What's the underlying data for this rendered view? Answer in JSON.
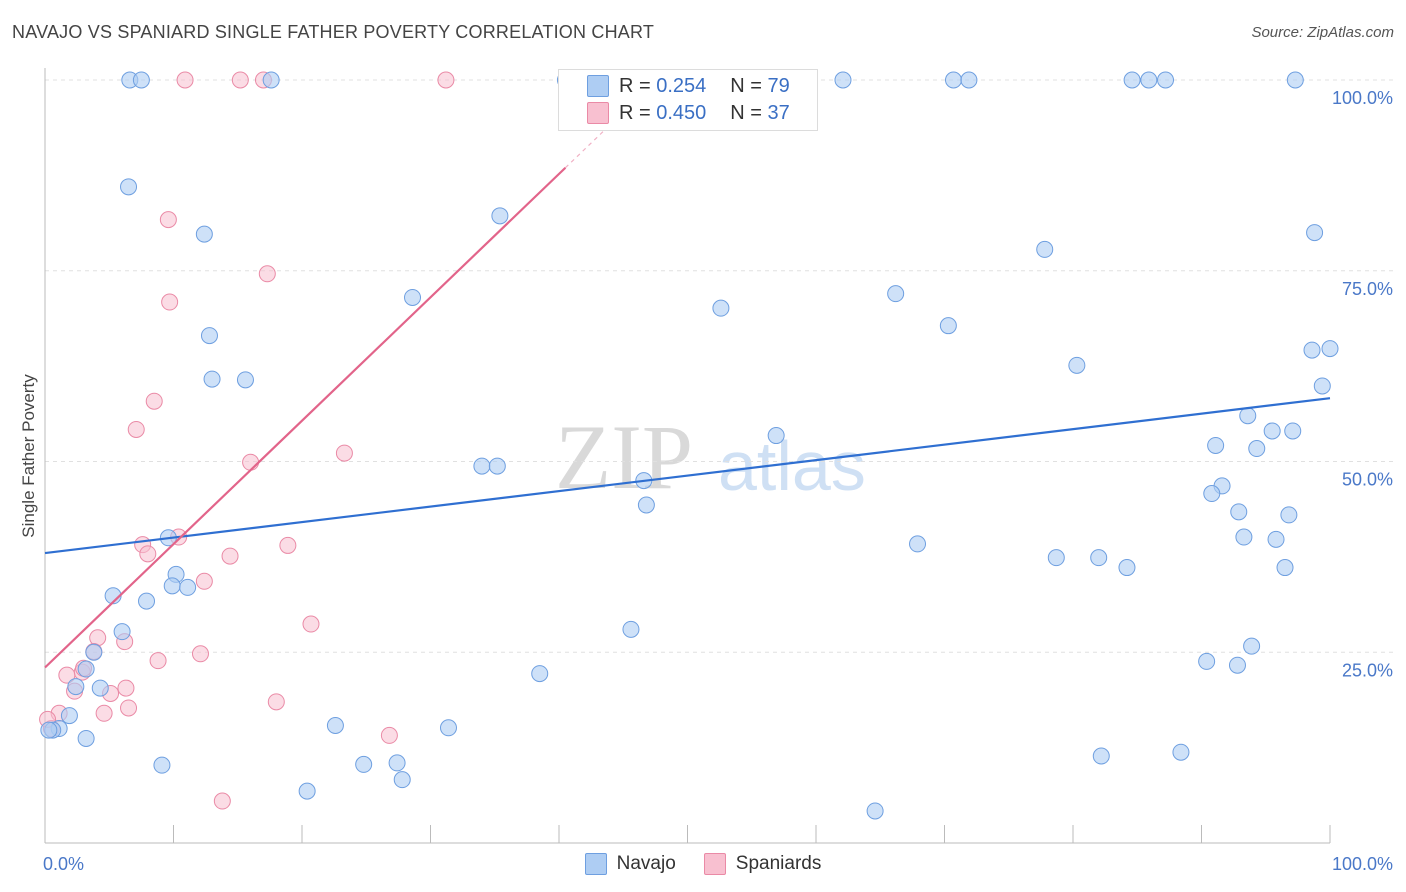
{
  "title": "NAVAJO VS SPANIARD SINGLE FATHER POVERTY CORRELATION CHART",
  "source": "Source: ZipAtlas.com",
  "watermark": {
    "zip": "ZIP",
    "atlas": "atlas"
  },
  "colors": {
    "navajo_fill": "#aecdf3",
    "navajo_stroke": "#6e9fe0",
    "navajo_line": "#2f6fd1",
    "spaniard_fill": "#f8c0d0",
    "spaniard_stroke": "#ea8aa6",
    "spaniard_line": "#e2648a"
  },
  "legend_top": {
    "rows": [
      {
        "r_label": "R =",
        "r_value": "0.254",
        "n_label": "N =",
        "n_value": "79"
      },
      {
        "r_label": "R =",
        "r_value": "0.450",
        "n_label": "N =",
        "n_value": "37"
      }
    ]
  },
  "legend_bottom": {
    "items": [
      {
        "label": "Navajo"
      },
      {
        "label": "Spaniards"
      }
    ]
  },
  "chart_data": {
    "type": "scatter",
    "xlabel": "",
    "ylabel": "Single Father Poverty",
    "xlim": [
      0,
      100
    ],
    "ylim": [
      0,
      100
    ],
    "x_tick_labels": {
      "left": "0.0%",
      "right": "100.0%"
    },
    "y_ticks": [
      {
        "value": 25,
        "label": "25.0%"
      },
      {
        "value": 50,
        "label": "50.0%"
      },
      {
        "value": 75,
        "label": "75.0%"
      },
      {
        "value": 100,
        "label": "100.0%"
      }
    ],
    "series": [
      {
        "name": "Navajo",
        "r": 0.254,
        "n": 79,
        "trend": {
          "x0": 0,
          "y0": 38,
          "x1": 100,
          "y1": 58.3
        },
        "points": [
          [
            6.6,
            100
          ],
          [
            7.5,
            100
          ],
          [
            17.6,
            100
          ],
          [
            40.5,
            100
          ],
          [
            62.1,
            100
          ],
          [
            70.7,
            100
          ],
          [
            71.9,
            100
          ],
          [
            84.6,
            100
          ],
          [
            85.9,
            100
          ],
          [
            87.2,
            100
          ],
          [
            97.3,
            100
          ],
          [
            6.5,
            86
          ],
          [
            12.4,
            79.8
          ],
          [
            35.4,
            82.2
          ],
          [
            77.8,
            77.8
          ],
          [
            98.8,
            80
          ],
          [
            28.6,
            71.5
          ],
          [
            52.6,
            70.1
          ],
          [
            66.2,
            72
          ],
          [
            70.3,
            67.8
          ],
          [
            12.8,
            66.5
          ],
          [
            98.6,
            64.6
          ],
          [
            100,
            64.8
          ],
          [
            80.3,
            62.6
          ],
          [
            13,
            60.8
          ],
          [
            15.6,
            60.7
          ],
          [
            99.4,
            59.9
          ],
          [
            93.6,
            56
          ],
          [
            56.9,
            53.4
          ],
          [
            97.1,
            54
          ],
          [
            94.3,
            51.7
          ],
          [
            91.1,
            52.1
          ],
          [
            95.5,
            54
          ],
          [
            34,
            49.4
          ],
          [
            35.2,
            49.4
          ],
          [
            46.6,
            47.5
          ],
          [
            91.6,
            46.8
          ],
          [
            90.8,
            45.8
          ],
          [
            46.8,
            44.3
          ],
          [
            92.9,
            43.4
          ],
          [
            96.8,
            43
          ],
          [
            9.6,
            40
          ],
          [
            93.3,
            40.1
          ],
          [
            95.8,
            39.8
          ],
          [
            67.9,
            39.2
          ],
          [
            78.7,
            37.4
          ],
          [
            82,
            37.4
          ],
          [
            84.2,
            36.1
          ],
          [
            96.5,
            36.1
          ],
          [
            10.2,
            35.2
          ],
          [
            9.9,
            33.7
          ],
          [
            11.1,
            33.5
          ],
          [
            5.3,
            32.4
          ],
          [
            7.9,
            31.7
          ],
          [
            6,
            27.7
          ],
          [
            45.6,
            28
          ],
          [
            3.8,
            25
          ],
          [
            93.9,
            25.8
          ],
          [
            90.4,
            23.8
          ],
          [
            92.8,
            23.3
          ],
          [
            3.2,
            22.8
          ],
          [
            38.5,
            22.2
          ],
          [
            2.4,
            20.5
          ],
          [
            4.3,
            20.3
          ],
          [
            1.9,
            16.7
          ],
          [
            1.1,
            15
          ],
          [
            0.6,
            14.8
          ],
          [
            3.2,
            13.7
          ],
          [
            22.6,
            15.4
          ],
          [
            31.4,
            15.1
          ],
          [
            88.4,
            11.9
          ],
          [
            82.2,
            11.4
          ],
          [
            9.1,
            10.2
          ],
          [
            24.8,
            10.3
          ],
          [
            27.4,
            10.5
          ],
          [
            27.8,
            8.3
          ],
          [
            20.4,
            6.8
          ],
          [
            64.6,
            4.2
          ],
          [
            0.3,
            14.8
          ]
        ]
      },
      {
        "name": "Spaniards",
        "r": 0.45,
        "n": 37,
        "trend": {
          "x0": 0,
          "y0": 23,
          "x1": 40.5,
          "y1": 88.5
        },
        "points": [
          [
            10.9,
            100
          ],
          [
            15.2,
            100
          ],
          [
            17,
            100
          ],
          [
            31.2,
            100
          ],
          [
            9.6,
            81.7
          ],
          [
            17.3,
            74.6
          ],
          [
            9.7,
            70.9
          ],
          [
            8.5,
            57.9
          ],
          [
            7.1,
            54.2
          ],
          [
            23.3,
            51.1
          ],
          [
            16,
            49.9
          ],
          [
            10.4,
            40.1
          ],
          [
            7.6,
            39.1
          ],
          [
            8,
            37.9
          ],
          [
            14.4,
            37.6
          ],
          [
            18.9,
            39
          ],
          [
            12.4,
            34.3
          ],
          [
            20.7,
            28.7
          ],
          [
            4.1,
            26.9
          ],
          [
            6.2,
            26.4
          ],
          [
            3.8,
            25.1
          ],
          [
            12.1,
            24.8
          ],
          [
            8.8,
            23.9
          ],
          [
            2.9,
            22.4
          ],
          [
            1.7,
            22
          ],
          [
            3,
            22.9
          ],
          [
            2.3,
            19.9
          ],
          [
            6.3,
            20.3
          ],
          [
            5.1,
            19.6
          ],
          [
            6.5,
            17.7
          ],
          [
            4.6,
            17
          ],
          [
            18,
            18.5
          ],
          [
            26.8,
            14.1
          ],
          [
            1.1,
            17
          ],
          [
            0.5,
            15
          ],
          [
            0.2,
            16.2
          ],
          [
            13.8,
            5.5
          ]
        ]
      }
    ]
  }
}
